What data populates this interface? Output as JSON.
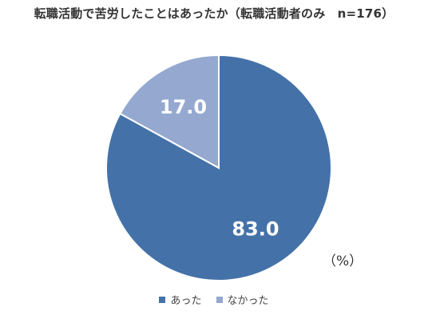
{
  "chart_data": {
    "type": "pie",
    "title": "転職活動で苦労したことはあったか（転職活動者のみ　n=176）",
    "unit": "（%）",
    "categories": [
      "あった",
      "なかった"
    ],
    "values": [
      83.0,
      17.0
    ],
    "value_labels": [
      "83.0",
      "17.0"
    ],
    "colors": [
      "#4472a8",
      "#94a8d0"
    ],
    "legend_position": "bottom"
  }
}
